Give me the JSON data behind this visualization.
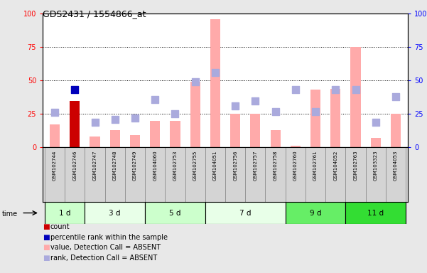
{
  "title": "GDS2431 / 1554866_at",
  "samples": [
    "GSM102744",
    "GSM102746",
    "GSM102747",
    "GSM102748",
    "GSM102749",
    "GSM104060",
    "GSM102753",
    "GSM102755",
    "GSM104051",
    "GSM102756",
    "GSM102757",
    "GSM102758",
    "GSM102760",
    "GSM102761",
    "GSM104052",
    "GSM102763",
    "GSM103323",
    "GSM104053"
  ],
  "time_groups": [
    {
      "label": "1 d",
      "start": 0,
      "end": 2,
      "color": "#ccffcc"
    },
    {
      "label": "3 d",
      "start": 2,
      "end": 5,
      "color": "#e8ffe8"
    },
    {
      "label": "5 d",
      "start": 5,
      "end": 8,
      "color": "#ccffcc"
    },
    {
      "label": "7 d",
      "start": 8,
      "end": 12,
      "color": "#e8ffe8"
    },
    {
      "label": "9 d",
      "start": 12,
      "end": 15,
      "color": "#66ee66"
    },
    {
      "label": "11 d",
      "start": 15,
      "end": 18,
      "color": "#33dd33"
    }
  ],
  "pink_bars": [
    17,
    35,
    8,
    13,
    9,
    20,
    20,
    49,
    96,
    25,
    25,
    13,
    1,
    43,
    44,
    75,
    7,
    25
  ],
  "blue_squares": [
    26,
    43,
    19,
    21,
    22,
    36,
    25,
    49,
    56,
    31,
    35,
    27,
    43,
    27,
    43,
    43,
    19,
    38
  ],
  "red_bar_index": 1,
  "dark_blue_square_index": 1,
  "ylim": [
    0,
    100
  ],
  "yticks": [
    0,
    25,
    50,
    75,
    100
  ],
  "grid_lines": [
    25,
    50,
    75
  ],
  "pink_color": "#ffaaaa",
  "blue_square_color": "#aaaadd",
  "red_color": "#cc0000",
  "dark_blue_color": "#0000bb",
  "bg_color": "#e8e8e8",
  "plot_bg": "#ffffff",
  "cell_bg": "#d4d4d4",
  "legend_items": [
    {
      "label": "count",
      "color": "#cc0000"
    },
    {
      "label": "percentile rank within the sample",
      "color": "#0000bb"
    },
    {
      "label": "value, Detection Call = ABSENT",
      "color": "#ffaaaa"
    },
    {
      "label": "rank, Detection Call = ABSENT",
      "color": "#aaaadd"
    }
  ]
}
